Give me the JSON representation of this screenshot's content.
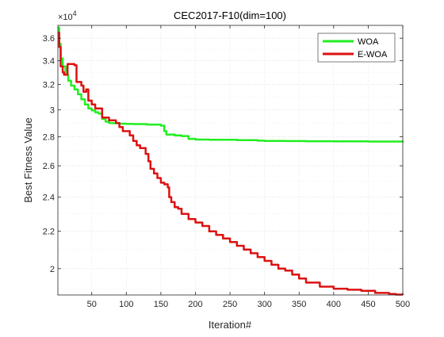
{
  "chart_data": {
    "type": "line",
    "title": "CEC2017-F10(dim=100)",
    "xlabel": "Iteration#",
    "ylabel": "Best Fitness Value",
    "y_exponent_base": "×10",
    "y_exponent_power": "4",
    "y_scale": "log",
    "xlim": [
      1,
      500
    ],
    "ylim": [
      18700,
      37200
    ],
    "x_ticks": [
      50,
      100,
      150,
      200,
      250,
      300,
      350,
      400,
      450,
      500
    ],
    "y_ticks": [
      {
        "value": 20000,
        "label": "2"
      },
      {
        "value": 22000,
        "label": "2.2"
      },
      {
        "value": 24000,
        "label": "2.4"
      },
      {
        "value": 26000,
        "label": "2.6"
      },
      {
        "value": 28000,
        "label": "2.8"
      },
      {
        "value": 30000,
        "label": "3"
      },
      {
        "value": 32000,
        "label": "3.2"
      },
      {
        "value": 34000,
        "label": "3.4"
      },
      {
        "value": 36000,
        "label": "3.6"
      }
    ],
    "grid": true,
    "legend_position": "top-right",
    "series": [
      {
        "name": "WOA",
        "color": "#22ee22",
        "points": [
          [
            1,
            37000
          ],
          [
            3,
            35500
          ],
          [
            5,
            34200
          ],
          [
            8,
            33500
          ],
          [
            12,
            32800
          ],
          [
            16,
            32300
          ],
          [
            20,
            31900
          ],
          [
            25,
            31600
          ],
          [
            30,
            31200
          ],
          [
            35,
            30800
          ],
          [
            40,
            30400
          ],
          [
            45,
            30100
          ],
          [
            50,
            29950
          ],
          [
            55,
            29800
          ],
          [
            60,
            29700
          ],
          [
            65,
            29300
          ],
          [
            70,
            29100
          ],
          [
            75,
            29000
          ],
          [
            80,
            28980
          ],
          [
            90,
            28950
          ],
          [
            100,
            28930
          ],
          [
            110,
            28920
          ],
          [
            130,
            28880
          ],
          [
            150,
            28800
          ],
          [
            155,
            28400
          ],
          [
            158,
            28150
          ],
          [
            170,
            28100
          ],
          [
            180,
            28050
          ],
          [
            190,
            27850
          ],
          [
            200,
            27800
          ],
          [
            220,
            27790
          ],
          [
            240,
            27780
          ],
          [
            260,
            27760
          ],
          [
            290,
            27720
          ],
          [
            300,
            27700
          ],
          [
            330,
            27690
          ],
          [
            360,
            27680
          ],
          [
            400,
            27670
          ],
          [
            450,
            27660
          ],
          [
            500,
            27600
          ]
        ]
      },
      {
        "name": "E-WOA",
        "color": "#dd1111",
        "points": [
          [
            1,
            36500
          ],
          [
            3,
            35200
          ],
          [
            5,
            33500
          ],
          [
            8,
            33000
          ],
          [
            10,
            32800
          ],
          [
            15,
            33700
          ],
          [
            25,
            33600
          ],
          [
            28,
            32200
          ],
          [
            35,
            31900
          ],
          [
            38,
            31400
          ],
          [
            42,
            31600
          ],
          [
            45,
            30700
          ],
          [
            50,
            30400
          ],
          [
            55,
            30100
          ],
          [
            65,
            29400
          ],
          [
            75,
            29200
          ],
          [
            85,
            29000
          ],
          [
            90,
            28700
          ],
          [
            95,
            28400
          ],
          [
            105,
            28100
          ],
          [
            110,
            27700
          ],
          [
            115,
            27400
          ],
          [
            120,
            27200
          ],
          [
            128,
            26800
          ],
          [
            132,
            26300
          ],
          [
            135,
            25800
          ],
          [
            140,
            25500
          ],
          [
            145,
            25200
          ],
          [
            150,
            24900
          ],
          [
            155,
            24800
          ],
          [
            160,
            24600
          ],
          [
            162,
            24000
          ],
          [
            165,
            23700
          ],
          [
            170,
            23400
          ],
          [
            175,
            23300
          ],
          [
            180,
            23000
          ],
          [
            190,
            22700
          ],
          [
            200,
            22500
          ],
          [
            210,
            22300
          ],
          [
            220,
            22000
          ],
          [
            230,
            21800
          ],
          [
            240,
            21600
          ],
          [
            250,
            21400
          ],
          [
            260,
            21200
          ],
          [
            270,
            21000
          ],
          [
            280,
            20800
          ],
          [
            290,
            20600
          ],
          [
            300,
            20400
          ],
          [
            310,
            20200
          ],
          [
            320,
            20000
          ],
          [
            330,
            19900
          ],
          [
            340,
            19700
          ],
          [
            350,
            19500
          ],
          [
            360,
            19300
          ],
          [
            380,
            19100
          ],
          [
            400,
            19000
          ],
          [
            420,
            18950
          ],
          [
            440,
            18900
          ],
          [
            460,
            18800
          ],
          [
            480,
            18750
          ],
          [
            490,
            18720
          ],
          [
            500,
            18700
          ]
        ]
      }
    ]
  }
}
